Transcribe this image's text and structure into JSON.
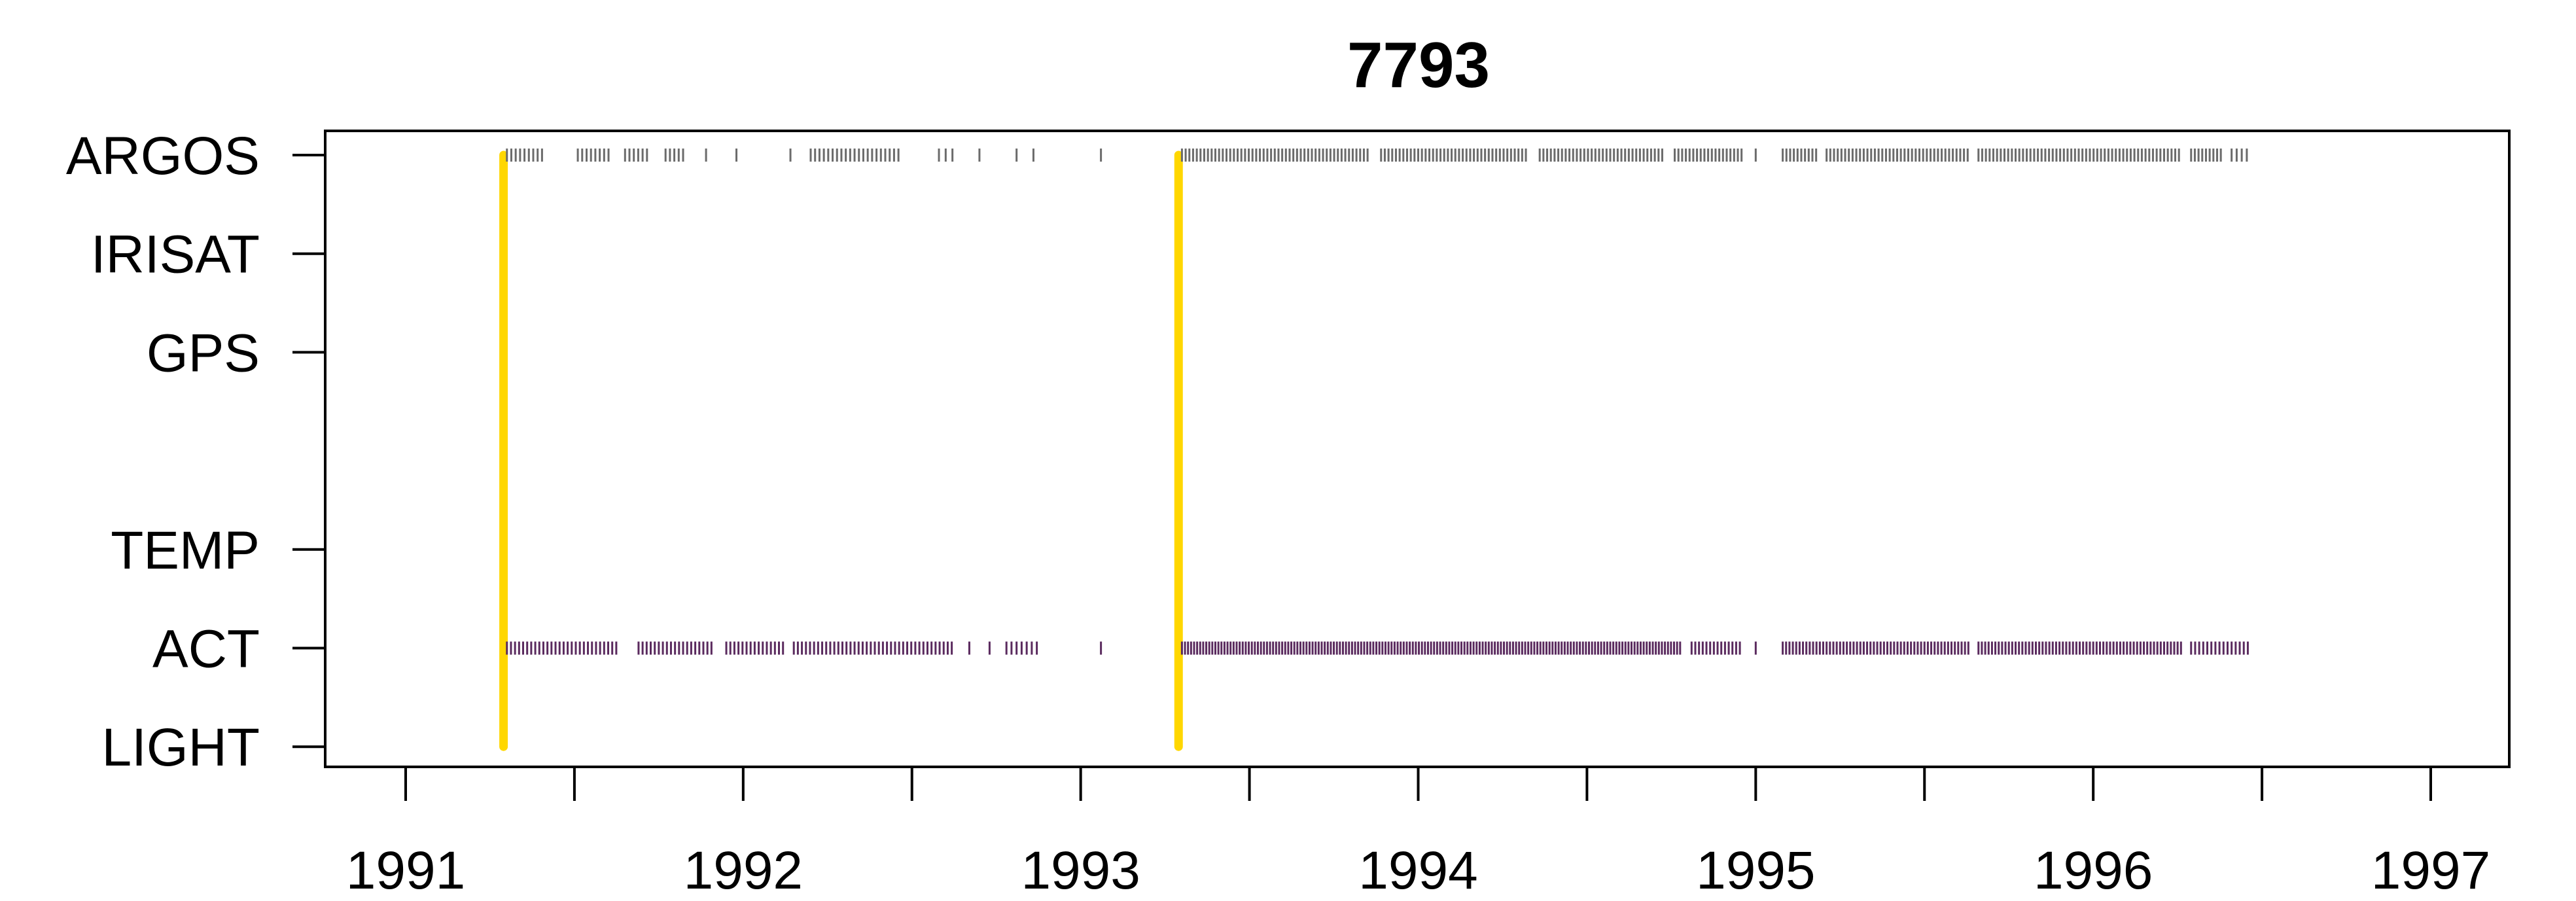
{
  "chart_data": {
    "type": "scatter",
    "title": "7793",
    "xlabel": "",
    "ylabel": "",
    "xlim": [
      1991,
      1997
    ],
    "x_ticks": [
      1991,
      1991.5,
      1992,
      1992.5,
      1993,
      1993.5,
      1994,
      1994.5,
      1995,
      1995.5,
      1996,
      1996.5,
      1997
    ],
    "x_tick_labels": [
      "1991",
      "1992",
      "1993",
      "1994",
      "1995",
      "1996",
      "1997"
    ],
    "x_tick_label_values": [
      1991,
      1992,
      1993,
      1994,
      1995,
      1996,
      1997
    ],
    "y_categories": [
      "ARGOS",
      "IRISAT",
      "GPS",
      "TEMP",
      "ACT",
      "LIGHT"
    ],
    "y_category_rank": [
      6,
      5,
      4,
      2,
      1,
      0
    ],
    "grid": false,
    "legend": "none",
    "colors": {
      "deployment": "#FFD700",
      "argos": "#6b6b6b",
      "act": "#5a2a5e",
      "axis": "#000000"
    },
    "deployments": [
      {
        "x": 1991.29,
        "from": "ARGOS",
        "to": "LIGHT"
      },
      {
        "x": 1993.29,
        "from": "ARGOS",
        "to": "LIGHT"
      }
    ],
    "series": [
      {
        "name": "ARGOS",
        "segments": [
          {
            "from": 1991.3,
            "to": 1991.41,
            "step": 0.013
          },
          {
            "from": 1991.51,
            "to": 1991.61,
            "step": 0.013
          },
          {
            "from": 1991.65,
            "to": 1991.72,
            "step": 0.013
          },
          {
            "from": 1991.77,
            "to": 1991.83,
            "step": 0.013
          },
          {
            "from": 1991.89,
            "to": 1991.89,
            "step": 0.013
          },
          {
            "from": 1991.98,
            "to": 1991.98,
            "step": 0.013
          },
          {
            "from": 1992.14,
            "to": 1992.14,
            "step": 0.013
          },
          {
            "from": 1992.2,
            "to": 1992.46,
            "step": 0.013
          },
          {
            "from": 1992.58,
            "to": 1992.62,
            "step": 0.02
          },
          {
            "from": 1992.7,
            "to": 1992.7,
            "step": 0.013
          },
          {
            "from": 1992.81,
            "to": 1992.81,
            "step": 0.013
          },
          {
            "from": 1992.86,
            "to": 1992.86,
            "step": 0.013
          },
          {
            "from": 1993.06,
            "to": 1993.06,
            "step": 0.013
          },
          {
            "from": 1993.3,
            "to": 1993.85,
            "step": 0.011
          },
          {
            "from": 1993.89,
            "to": 1994.32,
            "step": 0.011
          },
          {
            "from": 1994.36,
            "to": 1994.73,
            "step": 0.011
          },
          {
            "from": 1994.76,
            "to": 1994.96,
            "step": 0.011
          },
          {
            "from": 1995.0,
            "to": 1995.0,
            "step": 0.011
          },
          {
            "from": 1995.08,
            "to": 1995.18,
            "step": 0.011
          },
          {
            "from": 1995.21,
            "to": 1995.63,
            "step": 0.011
          },
          {
            "from": 1995.66,
            "to": 1996.26,
            "step": 0.011
          },
          {
            "from": 1996.29,
            "to": 1996.38,
            "step": 0.011
          },
          {
            "from": 1996.41,
            "to": 1996.46,
            "step": 0.015
          }
        ]
      },
      {
        "name": "ACT",
        "segments": [
          {
            "from": 1991.3,
            "to": 1991.63,
            "step": 0.012
          },
          {
            "from": 1991.69,
            "to": 1991.91,
            "step": 0.012
          },
          {
            "from": 1991.95,
            "to": 1992.12,
            "step": 0.012
          },
          {
            "from": 1992.15,
            "to": 1992.62,
            "step": 0.012
          },
          {
            "from": 1992.67,
            "to": 1992.67,
            "step": 0.012
          },
          {
            "from": 1992.73,
            "to": 1992.73,
            "step": 0.012
          },
          {
            "from": 1992.78,
            "to": 1992.87,
            "step": 0.015
          },
          {
            "from": 1993.06,
            "to": 1993.06,
            "step": 0.012
          },
          {
            "from": 1993.3,
            "to": 1994.78,
            "step": 0.009
          },
          {
            "from": 1994.81,
            "to": 1994.96,
            "step": 0.011
          },
          {
            "from": 1995.0,
            "to": 1995.0,
            "step": 0.011
          },
          {
            "from": 1995.08,
            "to": 1995.63,
            "step": 0.01
          },
          {
            "from": 1995.66,
            "to": 1996.26,
            "step": 0.01
          },
          {
            "from": 1996.29,
            "to": 1996.46,
            "step": 0.012
          }
        ]
      }
    ]
  }
}
